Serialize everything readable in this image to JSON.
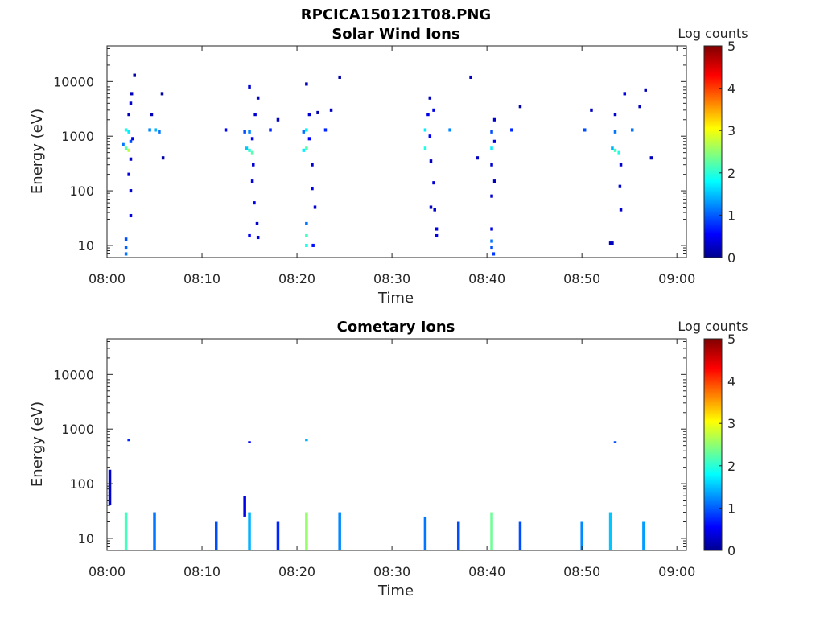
{
  "figure": {
    "title": "RPCICA150121T08.PNG"
  },
  "chart_data": [
    {
      "type": "heatmap",
      "title": "Solar Wind Ions",
      "xlabel": "Time",
      "ylabel": "Energy (eV)",
      "y_scale": "log",
      "ylim": [
        6,
        45000
      ],
      "xlim": [
        "08:00",
        "09:01"
      ],
      "x_ticks": [
        "08:00",
        "08:10",
        "08:20",
        "08:30",
        "08:40",
        "08:50",
        "09:00"
      ],
      "y_ticks": [
        "10",
        "100",
        "1000",
        "10000"
      ],
      "colorbar": {
        "label": "Log counts",
        "range": [
          0,
          5
        ],
        "ticks": [
          "0",
          "1",
          "2",
          "3",
          "4",
          "5"
        ],
        "colormap": "jet"
      },
      "bursts": [
        {
          "time": "08:02",
          "cells": [
            {
              "dt": 0,
              "e": 1300,
              "v": 2.0
            },
            {
              "dt": 0,
              "e": 600,
              "v": 2.3
            },
            {
              "dt": 0.3,
              "e": 550,
              "v": 2.8
            },
            {
              "dt": 0.3,
              "e": 1200,
              "v": 1.8
            },
            {
              "dt": 0.5,
              "e": 800,
              "v": 1.0
            },
            {
              "dt": 0.5,
              "e": 4000,
              "v": 0.4
            },
            {
              "dt": 0.3,
              "e": 2500,
              "v": 0.3
            },
            {
              "dt": 0.5,
              "e": 380,
              "v": 0.4
            },
            {
              "dt": 0.3,
              "e": 200,
              "v": 0.5
            },
            {
              "dt": 0.5,
              "e": 100,
              "v": 0.4
            },
            {
              "dt": 0.5,
              "e": 35,
              "v": 0.5
            },
            {
              "dt": 0,
              "e": 13,
              "v": 1.0
            },
            {
              "dt": 0,
              "e": 9,
              "v": 1.1
            },
            {
              "dt": 0,
              "e": 7,
              "v": 1.2
            },
            {
              "dt": 0.6,
              "e": 6000,
              "v": 0.3
            },
            {
              "dt": 0.9,
              "e": 13000,
              "v": 0.2
            },
            {
              "dt": 0.7,
              "e": 900,
              "v": 0.5
            },
            {
              "dt": -0.3,
              "e": 700,
              "v": 1.2
            }
          ]
        },
        {
          "time": "08:04.5",
          "cells": [
            {
              "dt": 0,
              "e": 1300,
              "v": 1.3
            },
            {
              "dt": 0.6,
              "e": 1300,
              "v": 1.5
            },
            {
              "dt": 1.0,
              "e": 1200,
              "v": 1.2
            },
            {
              "dt": 0.2,
              "e": 2500,
              "v": 0.3
            },
            {
              "dt": 1.3,
              "e": 6000,
              "v": 0.2
            },
            {
              "dt": 1.4,
              "e": 400,
              "v": 0.2
            }
          ]
        },
        {
          "time": "08:15",
          "cells": [
            {
              "dt": 0,
              "e": 550,
              "v": 2.1
            },
            {
              "dt": 0.3,
              "e": 500,
              "v": 2.3
            },
            {
              "dt": -0.3,
              "e": 600,
              "v": 1.6
            },
            {
              "dt": 0,
              "e": 1200,
              "v": 1.3
            },
            {
              "dt": -0.5,
              "e": 1200,
              "v": 1.0
            },
            {
              "dt": 0.3,
              "e": 900,
              "v": 0.6
            },
            {
              "dt": 0.6,
              "e": 2500,
              "v": 0.4
            },
            {
              "dt": 0,
              "e": 8000,
              "v": 0.4
            },
            {
              "dt": 0.9,
              "e": 5000,
              "v": 0.3
            },
            {
              "dt": 0.4,
              "e": 300,
              "v": 0.4
            },
            {
              "dt": 0.3,
              "e": 150,
              "v": 0.5
            },
            {
              "dt": 0.5,
              "e": 60,
              "v": 0.5
            },
            {
              "dt": 0.8,
              "e": 25,
              "v": 0.4
            },
            {
              "dt": 0,
              "e": 15,
              "v": 0.6
            },
            {
              "dt": 0.9,
              "e": 14,
              "v": 0.5
            },
            {
              "dt": -2.5,
              "e": 1300,
              "v": 0.6
            },
            {
              "dt": 2.2,
              "e": 1300,
              "v": 0.8
            },
            {
              "dt": 3.0,
              "e": 2000,
              "v": 0.3
            }
          ]
        },
        {
          "time": "08:21",
          "cells": [
            {
              "dt": 0,
              "e": 600,
              "v": 2.3
            },
            {
              "dt": -0.3,
              "e": 550,
              "v": 1.8
            },
            {
              "dt": 0,
              "e": 1300,
              "v": 1.8
            },
            {
              "dt": -0.3,
              "e": 1200,
              "v": 1.2
            },
            {
              "dt": 0.3,
              "e": 900,
              "v": 0.6
            },
            {
              "dt": 0.3,
              "e": 2500,
              "v": 0.4
            },
            {
              "dt": 0,
              "e": 9000,
              "v": 0.3
            },
            {
              "dt": 0.6,
              "e": 300,
              "v": 0.4
            },
            {
              "dt": 0.6,
              "e": 110,
              "v": 0.5
            },
            {
              "dt": 0.9,
              "e": 50,
              "v": 0.4
            },
            {
              "dt": 0,
              "e": 25,
              "v": 1.2
            },
            {
              "dt": 0,
              "e": 15,
              "v": 2.2
            },
            {
              "dt": 0,
              "e": 10,
              "v": 2.0
            },
            {
              "dt": 0.7,
              "e": 10,
              "v": 0.7
            },
            {
              "dt": 1.2,
              "e": 2700,
              "v": 0.2
            },
            {
              "dt": 2.0,
              "e": 1300,
              "v": 0.8
            },
            {
              "dt": 3.5,
              "e": 12000,
              "v": 0.2
            },
            {
              "dt": 2.6,
              "e": 3000,
              "v": 0.3
            }
          ]
        },
        {
          "time": "08:33.5",
          "cells": [
            {
              "dt": 0,
              "e": 600,
              "v": 2.0
            },
            {
              "dt": 0,
              "e": 1300,
              "v": 1.8
            },
            {
              "dt": 0.5,
              "e": 1000,
              "v": 0.6
            },
            {
              "dt": 0.3,
              "e": 2500,
              "v": 0.5
            },
            {
              "dt": 0.9,
              "e": 3000,
              "v": 0.5
            },
            {
              "dt": 0.5,
              "e": 5000,
              "v": 0.3
            },
            {
              "dt": 0.6,
              "e": 350,
              "v": 0.3
            },
            {
              "dt": 0.9,
              "e": 140,
              "v": 0.4
            },
            {
              "dt": 0.6,
              "e": 50,
              "v": 0.3
            },
            {
              "dt": 1.0,
              "e": 45,
              "v": 0.4
            },
            {
              "dt": 1.2,
              "e": 15,
              "v": 0.5
            },
            {
              "dt": 1.2,
              "e": 20,
              "v": 0.5
            },
            {
              "dt": 2.6,
              "e": 1300,
              "v": 1.3
            }
          ]
        },
        {
          "time": "08:40.5",
          "cells": [
            {
              "dt": 0,
              "e": 600,
              "v": 1.8
            },
            {
              "dt": 0,
              "e": 1200,
              "v": 1.0
            },
            {
              "dt": 0.3,
              "e": 800,
              "v": 0.5
            },
            {
              "dt": 0.3,
              "e": 2000,
              "v": 0.4
            },
            {
              "dt": 0,
              "e": 300,
              "v": 0.4
            },
            {
              "dt": 0.3,
              "e": 150,
              "v": 0.3
            },
            {
              "dt": 0,
              "e": 80,
              "v": 0.4
            },
            {
              "dt": 0,
              "e": 20,
              "v": 0.5
            },
            {
              "dt": 0,
              "e": 12,
              "v": 1.2
            },
            {
              "dt": 0,
              "e": 9,
              "v": 1.0
            },
            {
              "dt": 0.2,
              "e": 7,
              "v": 0.9
            },
            {
              "dt": 2.1,
              "e": 1300,
              "v": 0.8
            },
            {
              "dt": 3.0,
              "e": 3500,
              "v": 0.2
            },
            {
              "dt": -1.5,
              "e": 400,
              "v": 0.3
            },
            {
              "dt": -2.2,
              "e": 12000,
              "v": 0.3
            }
          ]
        },
        {
          "time": "08:53.5",
          "cells": [
            {
              "dt": 0,
              "e": 550,
              "v": 2.2
            },
            {
              "dt": 0.4,
              "e": 500,
              "v": 2.0
            },
            {
              "dt": -0.3,
              "e": 600,
              "v": 1.5
            },
            {
              "dt": 0,
              "e": 1200,
              "v": 1.2
            },
            {
              "dt": 0,
              "e": 2500,
              "v": 0.4
            },
            {
              "dt": 0.6,
              "e": 300,
              "v": 0.4
            },
            {
              "dt": 0.5,
              "e": 120,
              "v": 0.4
            },
            {
              "dt": 0.6,
              "e": 45,
              "v": 0.4
            },
            {
              "dt": -0.3,
              "e": 11,
              "v": 0.3
            },
            {
              "dt": -0.5,
              "e": 11,
              "v": 0.3
            },
            {
              "dt": 1.0,
              "e": 6000,
              "v": 0.5
            },
            {
              "dt": 1.8,
              "e": 1300,
              "v": 1.2
            },
            {
              "dt": 3.2,
              "e": 7000,
              "v": 0.3
            },
            {
              "dt": -3.2,
              "e": 1300,
              "v": 1.0
            },
            {
              "dt": -2.5,
              "e": 3000,
              "v": 0.3
            },
            {
              "dt": 2.6,
              "e": 3500,
              "v": 0.3
            },
            {
              "dt": 3.8,
              "e": 400,
              "v": 0.3
            }
          ]
        }
      ]
    },
    {
      "type": "heatmap",
      "title": "Cometary Ions",
      "xlabel": "Time",
      "ylabel": "Energy (eV)",
      "y_scale": "log",
      "ylim": [
        6,
        45000
      ],
      "xlim": [
        "08:00",
        "09:01"
      ],
      "x_ticks": [
        "08:00",
        "08:10",
        "08:20",
        "08:30",
        "08:40",
        "08:50",
        "09:00"
      ],
      "y_ticks": [
        "10",
        "100",
        "1000",
        "10000"
      ],
      "colorbar": {
        "label": "Log counts",
        "range": [
          0,
          5
        ],
        "ticks": [
          "0",
          "1",
          "2",
          "3",
          "4",
          "5"
        ],
        "colormap": "jet"
      },
      "columns": [
        {
          "time": "08:00.3",
          "e_lo": 40,
          "e_hi": 180,
          "v": 0.4
        },
        {
          "time": "08:02",
          "e_lo": 6,
          "e_hi": 30,
          "v": 2.2
        },
        {
          "time": "08:02.3",
          "e_lo": 600,
          "e_hi": 650,
          "v": 0.8
        },
        {
          "time": "08:05",
          "e_lo": 6,
          "e_hi": 30,
          "v": 1.2
        },
        {
          "time": "08:11.5",
          "e_lo": 6,
          "e_hi": 20,
          "v": 1.0
        },
        {
          "time": "08:14.5",
          "e_lo": 25,
          "e_hi": 60,
          "v": 0.5
        },
        {
          "time": "08:15",
          "e_lo": 6,
          "e_hi": 30,
          "v": 1.5
        },
        {
          "time": "08:15",
          "e_lo": 550,
          "e_hi": 600,
          "v": 0.6
        },
        {
          "time": "08:18",
          "e_lo": 6,
          "e_hi": 20,
          "v": 0.8
        },
        {
          "time": "08:21",
          "e_lo": 6,
          "e_hi": 30,
          "v": 2.6
        },
        {
          "time": "08:21",
          "e_lo": 600,
          "e_hi": 650,
          "v": 1.5
        },
        {
          "time": "08:24.5",
          "e_lo": 6,
          "e_hi": 30,
          "v": 1.3
        },
        {
          "time": "08:33.5",
          "e_lo": 6,
          "e_hi": 25,
          "v": 1.2
        },
        {
          "time": "08:37",
          "e_lo": 6,
          "e_hi": 20,
          "v": 1.0
        },
        {
          "time": "08:40.5",
          "e_lo": 6,
          "e_hi": 30,
          "v": 2.4
        },
        {
          "time": "08:43.5",
          "e_lo": 6,
          "e_hi": 20,
          "v": 1.0
        },
        {
          "time": "08:50",
          "e_lo": 6,
          "e_hi": 20,
          "v": 1.3
        },
        {
          "time": "08:53",
          "e_lo": 6,
          "e_hi": 30,
          "v": 1.6
        },
        {
          "time": "08:53.5",
          "e_lo": 550,
          "e_hi": 600,
          "v": 1.0
        },
        {
          "time": "08:56.5",
          "e_lo": 6,
          "e_hi": 20,
          "v": 1.4
        }
      ]
    }
  ]
}
